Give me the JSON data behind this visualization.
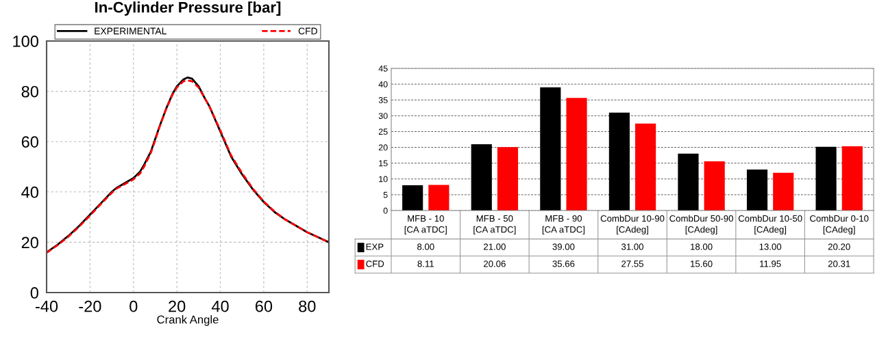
{
  "chart_data": [
    {
      "type": "line",
      "title": "In-Cylinder Pressure [bar]",
      "xlabel": "Crank Angle",
      "xlim": [
        -40,
        90
      ],
      "ylim": [
        0,
        100
      ],
      "xticks": [
        -40,
        -20,
        0,
        20,
        40,
        60,
        80
      ],
      "yticks": [
        0,
        20,
        40,
        60,
        80,
        100
      ],
      "grid": true,
      "legend": "top",
      "marker": "none",
      "series": [
        {
          "name": "EXPERIMENTAL",
          "color": "#000000",
          "line_style": "solid",
          "x": [
            -40,
            -35,
            -30,
            -25,
            -20,
            -15,
            -10,
            -8,
            -5,
            0,
            3,
            5,
            8,
            10,
            12,
            15,
            18,
            20,
            23,
            25,
            27,
            30,
            33,
            35,
            38,
            40,
            43,
            45,
            50,
            55,
            60,
            65,
            70,
            75,
            80,
            85,
            90
          ],
          "values": [
            16,
            19,
            22.5,
            26.5,
            31,
            35.5,
            40,
            41.5,
            43,
            45.5,
            48,
            51,
            56,
            61,
            66,
            73,
            79,
            82,
            84.7,
            85.5,
            85,
            82,
            77,
            74,
            68,
            64,
            58,
            54,
            47,
            41,
            36,
            32,
            29,
            26.5,
            24,
            22,
            20
          ]
        },
        {
          "name": "CFD",
          "color": "#ff0000",
          "line_style": "dashed",
          "x": [
            -40,
            -35,
            -30,
            -25,
            -20,
            -15,
            -10,
            -8,
            -5,
            0,
            3,
            5,
            8,
            10,
            12,
            15,
            18,
            20,
            23,
            25,
            27,
            30,
            33,
            35,
            38,
            40,
            43,
            45,
            50,
            55,
            60,
            65,
            70,
            75,
            80,
            85,
            90
          ],
          "values": [
            15.8,
            18.8,
            22.2,
            26.2,
            30.6,
            35.2,
            39.6,
            41.2,
            42.6,
            45,
            47.3,
            50.2,
            55.5,
            60.5,
            65.8,
            72.8,
            78.7,
            81.5,
            84,
            84.3,
            84,
            81.5,
            77,
            74,
            68.3,
            64.5,
            58.5,
            54.5,
            47.5,
            41.3,
            36.2,
            32.2,
            29,
            26.5,
            24,
            22,
            20
          ]
        }
      ]
    },
    {
      "type": "bar",
      "categories": [
        "MFB - 10\n[CA aTDC]",
        "MFB - 50\n[CA aTDC]",
        "MFB - 90\n[CA aTDC]",
        "CombDur 10-90\n[CAdeg]",
        "CombDur 50-90\n[CAdeg]",
        "CombDur 10-50\n[CAdeg]",
        "CombDur 0-10\n[CAdeg]"
      ],
      "ylim": [
        0,
        45
      ],
      "yticks": [
        0,
        5,
        10,
        15,
        20,
        25,
        30,
        35,
        40,
        45
      ],
      "grid": "y",
      "legend": "bottom left",
      "series": [
        {
          "name": "EXP",
          "color": "#000000",
          "values": [
            8.0,
            21.0,
            39.0,
            31.0,
            18.0,
            13.0,
            20.2
          ],
          "value_labels": [
            "8.00",
            "21.00",
            "39.00",
            "31.00",
            "18.00",
            "13.00",
            "20.20"
          ]
        },
        {
          "name": "CFD",
          "color": "#ff0000",
          "values": [
            8.11,
            20.06,
            35.66,
            27.55,
            15.6,
            11.95,
            20.31
          ],
          "value_labels": [
            "8.11",
            "20.06",
            "35.66",
            "27.55",
            "15.60",
            "11.95",
            "20.31"
          ]
        }
      ]
    }
  ]
}
